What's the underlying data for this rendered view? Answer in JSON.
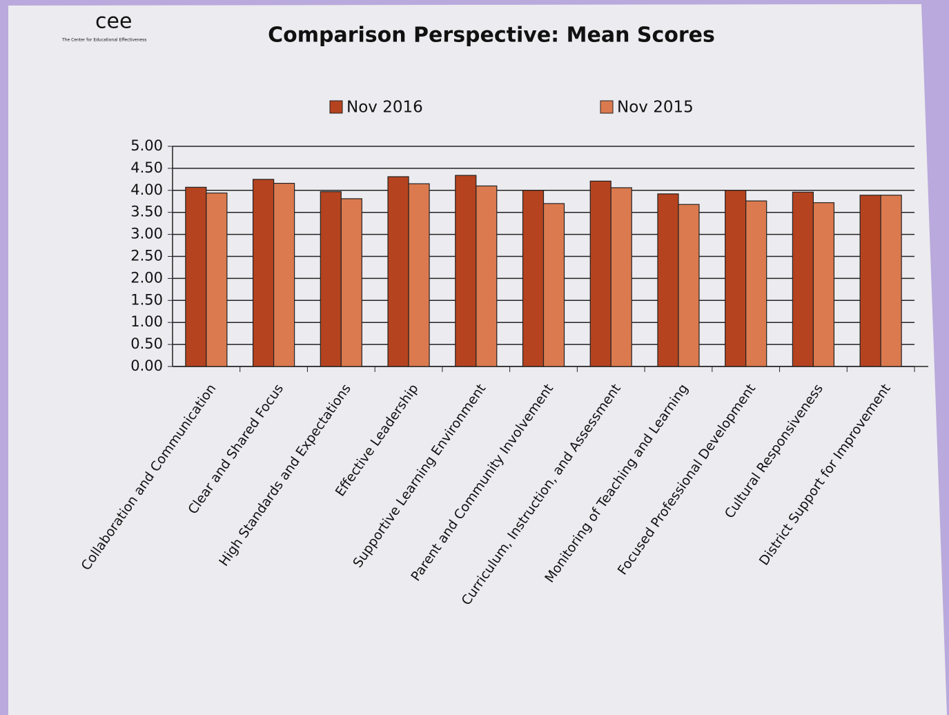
{
  "logo": {
    "text": "cee",
    "tagline": "The Center for Educational Effectiveness"
  },
  "chart_data": {
    "type": "bar",
    "title": "Comparison Perspective: Mean Scores",
    "categories": [
      "Collaboration and Communication",
      "Clear and Shared Focus",
      "High Standards and Expectations",
      "Effective Leadership",
      "Supportive Learning Environment",
      "Parent and Community Involvement",
      "Curriculum, Instruction, and Assessment",
      "Monitoring of Teaching and Learning",
      "Focused Professional Development",
      "Cultural Responsiveness",
      "District Support for Improvement"
    ],
    "series": [
      {
        "name": "Nov 2016",
        "color": "#b5431f",
        "values": [
          4.07,
          4.25,
          3.97,
          4.31,
          4.34,
          4.0,
          4.21,
          3.92,
          4.0,
          3.96,
          3.89
        ]
      },
      {
        "name": "Nov 2015",
        "color": "#db7a4f",
        "values": [
          3.94,
          4.16,
          3.81,
          4.15,
          4.1,
          3.7,
          4.06,
          3.68,
          3.76,
          3.72,
          3.89
        ]
      }
    ],
    "ylim": [
      0,
      5
    ],
    "yticks": [
      {
        "value": 0,
        "label": "0.00"
      },
      {
        "value": 0.5,
        "label": "0.50"
      },
      {
        "value": 1,
        "label": "1.00"
      },
      {
        "value": 1.5,
        "label": "1.50"
      },
      {
        "value": 2,
        "label": "2.00"
      },
      {
        "value": 2.5,
        "label": "2.50"
      },
      {
        "value": 3,
        "label": "3.00"
      },
      {
        "value": 3.5,
        "label": "3.50"
      },
      {
        "value": 4,
        "label": "4.00"
      },
      {
        "value": 4.5,
        "label": "4.50"
      },
      {
        "value": 5,
        "label": "5.00"
      }
    ],
    "grid": true,
    "legend": "top"
  }
}
